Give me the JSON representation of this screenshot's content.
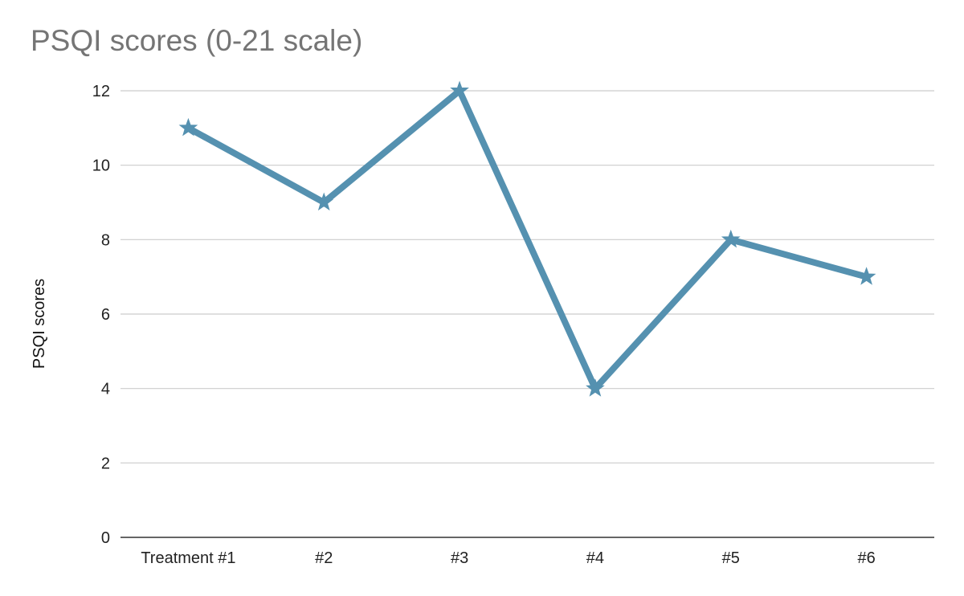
{
  "chart_data": {
    "type": "line",
    "title": "PSQI scores (0-21 scale)",
    "xlabel": "",
    "ylabel": "PSQI scores",
    "categories": [
      "Treatment #1",
      "#2",
      "#3",
      "#4",
      "#5",
      "#6"
    ],
    "series": [
      {
        "values": [
          11,
          9,
          12,
          4,
          8,
          7
        ],
        "color": "#5591B0",
        "marker": "star"
      }
    ],
    "ylim": [
      0,
      12
    ],
    "yticks": [
      0,
      2,
      4,
      6,
      8,
      10,
      12
    ],
    "grid": true,
    "legend": "none"
  }
}
